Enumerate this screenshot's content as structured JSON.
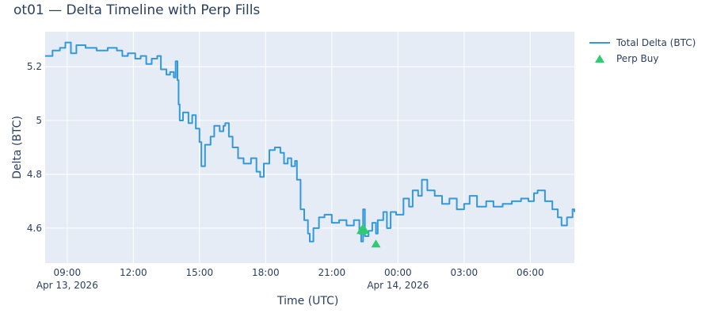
{
  "chart_data": {
    "type": "line",
    "title": "ot01 — Delta Timeline with Perp Fills",
    "xlabel": "Time (UTC)",
    "ylabel": "Delta (BTC)",
    "x_range": [
      "2026-04-13T08:00",
      "2026-04-14T08:00"
    ],
    "ylim": [
      4.47,
      5.33
    ],
    "x_ticks": [
      {
        "t": "2026-04-13T09:00",
        "label": "09:00",
        "sub": "Apr 13, 2026"
      },
      {
        "t": "2026-04-13T12:00",
        "label": "12:00",
        "sub": ""
      },
      {
        "t": "2026-04-13T15:00",
        "label": "15:00",
        "sub": ""
      },
      {
        "t": "2026-04-13T18:00",
        "label": "18:00",
        "sub": ""
      },
      {
        "t": "2026-04-13T21:00",
        "label": "21:00",
        "sub": ""
      },
      {
        "t": "2026-04-14T00:00",
        "label": "00:00",
        "sub": "Apr 14, 2026"
      },
      {
        "t": "2026-04-14T03:00",
        "label": "03:00",
        "sub": ""
      },
      {
        "t": "2026-04-14T06:00",
        "label": "06:00",
        "sub": ""
      }
    ],
    "y_ticks": [
      {
        "v": 4.6,
        "label": "4.6"
      },
      {
        "v": 4.8,
        "label": "4.8"
      },
      {
        "v": 5.0,
        "label": "5"
      },
      {
        "v": 5.2,
        "label": "5.2"
      }
    ],
    "grid": true,
    "legend_position": "top-right",
    "series": [
      {
        "name": "Total Delta (BTC)",
        "mode": "line",
        "color": "#3498db",
        "points": [
          [
            "2026-04-13T08:00",
            5.24
          ],
          [
            "2026-04-13T08:20",
            5.26
          ],
          [
            "2026-04-13T08:40",
            5.27
          ],
          [
            "2026-04-13T08:55",
            5.29
          ],
          [
            "2026-04-13T09:10",
            5.25
          ],
          [
            "2026-04-13T09:25",
            5.28
          ],
          [
            "2026-04-13T09:50",
            5.27
          ],
          [
            "2026-04-13T10:20",
            5.26
          ],
          [
            "2026-04-13T10:50",
            5.27
          ],
          [
            "2026-04-13T11:15",
            5.26
          ],
          [
            "2026-04-13T11:30",
            5.24
          ],
          [
            "2026-04-13T11:45",
            5.25
          ],
          [
            "2026-04-13T12:05",
            5.23
          ],
          [
            "2026-04-13T12:20",
            5.24
          ],
          [
            "2026-04-13T12:35",
            5.21
          ],
          [
            "2026-04-13T12:50",
            5.23
          ],
          [
            "2026-04-13T13:05",
            5.24
          ],
          [
            "2026-04-13T13:15",
            5.19
          ],
          [
            "2026-04-13T13:30",
            5.17
          ],
          [
            "2026-04-13T13:40",
            5.18
          ],
          [
            "2026-04-13T13:50",
            5.16
          ],
          [
            "2026-04-13T13:55",
            5.22
          ],
          [
            "2026-04-13T14:00",
            5.15
          ],
          [
            "2026-04-13T14:03",
            5.06
          ],
          [
            "2026-04-13T14:06",
            5.0
          ],
          [
            "2026-04-13T14:15",
            5.03
          ],
          [
            "2026-04-13T14:30",
            4.99
          ],
          [
            "2026-04-13T14:40",
            5.02
          ],
          [
            "2026-04-13T14:50",
            4.97
          ],
          [
            "2026-04-13T15:00",
            4.92
          ],
          [
            "2026-04-13T15:05",
            4.83
          ],
          [
            "2026-04-13T15:15",
            4.91
          ],
          [
            "2026-04-13T15:30",
            4.94
          ],
          [
            "2026-04-13T15:40",
            4.98
          ],
          [
            "2026-04-13T15:55",
            4.96
          ],
          [
            "2026-04-13T16:05",
            4.98
          ],
          [
            "2026-04-13T16:10",
            4.99
          ],
          [
            "2026-04-13T16:20",
            4.94
          ],
          [
            "2026-04-13T16:30",
            4.9
          ],
          [
            "2026-04-13T16:45",
            4.86
          ],
          [
            "2026-04-13T17:00",
            4.84
          ],
          [
            "2026-04-13T17:20",
            4.86
          ],
          [
            "2026-04-13T17:35",
            4.81
          ],
          [
            "2026-04-13T17:45",
            4.79
          ],
          [
            "2026-04-13T17:55",
            4.84
          ],
          [
            "2026-04-13T18:10",
            4.89
          ],
          [
            "2026-04-13T18:25",
            4.9
          ],
          [
            "2026-04-13T18:40",
            4.88
          ],
          [
            "2026-04-13T18:50",
            4.84
          ],
          [
            "2026-04-13T19:00",
            4.86
          ],
          [
            "2026-04-13T19:10",
            4.83
          ],
          [
            "2026-04-13T19:20",
            4.85
          ],
          [
            "2026-04-13T19:25",
            4.78
          ],
          [
            "2026-04-13T19:35",
            4.67
          ],
          [
            "2026-04-13T19:45",
            4.63
          ],
          [
            "2026-04-13T19:55",
            4.58
          ],
          [
            "2026-04-13T20:00",
            4.55
          ],
          [
            "2026-04-13T20:10",
            4.6
          ],
          [
            "2026-04-13T20:25",
            4.64
          ],
          [
            "2026-04-13T20:40",
            4.65
          ],
          [
            "2026-04-13T21:00",
            4.62
          ],
          [
            "2026-04-13T21:20",
            4.63
          ],
          [
            "2026-04-13T21:40",
            4.61
          ],
          [
            "2026-04-13T22:00",
            4.63
          ],
          [
            "2026-04-13T22:15",
            4.58
          ],
          [
            "2026-04-13T22:20",
            4.55
          ],
          [
            "2026-04-13T22:25",
            4.67
          ],
          [
            "2026-04-13T22:30",
            4.57
          ],
          [
            "2026-04-13T22:40",
            4.59
          ],
          [
            "2026-04-13T22:50",
            4.62
          ],
          [
            "2026-04-13T23:00",
            4.58
          ],
          [
            "2026-04-13T23:05",
            4.63
          ],
          [
            "2026-04-13T23:20",
            4.66
          ],
          [
            "2026-04-13T23:30",
            4.6
          ],
          [
            "2026-04-13T23:40",
            4.66
          ],
          [
            "2026-04-13T23:55",
            4.65
          ],
          [
            "2026-04-14T00:15",
            4.71
          ],
          [
            "2026-04-14T00:30",
            4.68
          ],
          [
            "2026-04-14T00:40",
            4.74
          ],
          [
            "2026-04-14T00:55",
            4.72
          ],
          [
            "2026-04-14T01:05",
            4.78
          ],
          [
            "2026-04-14T01:20",
            4.74
          ],
          [
            "2026-04-14T01:40",
            4.72
          ],
          [
            "2026-04-14T02:00",
            4.69
          ],
          [
            "2026-04-14T02:20",
            4.71
          ],
          [
            "2026-04-14T02:40",
            4.67
          ],
          [
            "2026-04-14T03:00",
            4.69
          ],
          [
            "2026-04-14T03:15",
            4.72
          ],
          [
            "2026-04-14T03:35",
            4.68
          ],
          [
            "2026-04-14T04:00",
            4.7
          ],
          [
            "2026-04-14T04:20",
            4.68
          ],
          [
            "2026-04-14T04:45",
            4.69
          ],
          [
            "2026-04-14T05:10",
            4.7
          ],
          [
            "2026-04-14T05:35",
            4.71
          ],
          [
            "2026-04-14T05:55",
            4.7
          ],
          [
            "2026-04-14T06:10",
            4.73
          ],
          [
            "2026-04-14T06:20",
            4.74
          ],
          [
            "2026-04-14T06:40",
            4.7
          ],
          [
            "2026-04-14T07:00",
            4.67
          ],
          [
            "2026-04-14T07:15",
            4.64
          ],
          [
            "2026-04-14T07:25",
            4.61
          ],
          [
            "2026-04-14T07:40",
            4.64
          ],
          [
            "2026-04-14T07:55",
            4.67
          ],
          [
            "2026-04-14T08:00",
            4.66
          ]
        ]
      },
      {
        "name": "Perp Buy",
        "mode": "markers",
        "marker": "triangle-up",
        "color": "#2ecc71",
        "points": [
          [
            "2026-04-13T22:20",
            4.59
          ],
          [
            "2026-04-13T22:25",
            4.6
          ],
          [
            "2026-04-13T22:30",
            4.59
          ],
          [
            "2026-04-13T23:00",
            4.54
          ]
        ]
      }
    ]
  }
}
